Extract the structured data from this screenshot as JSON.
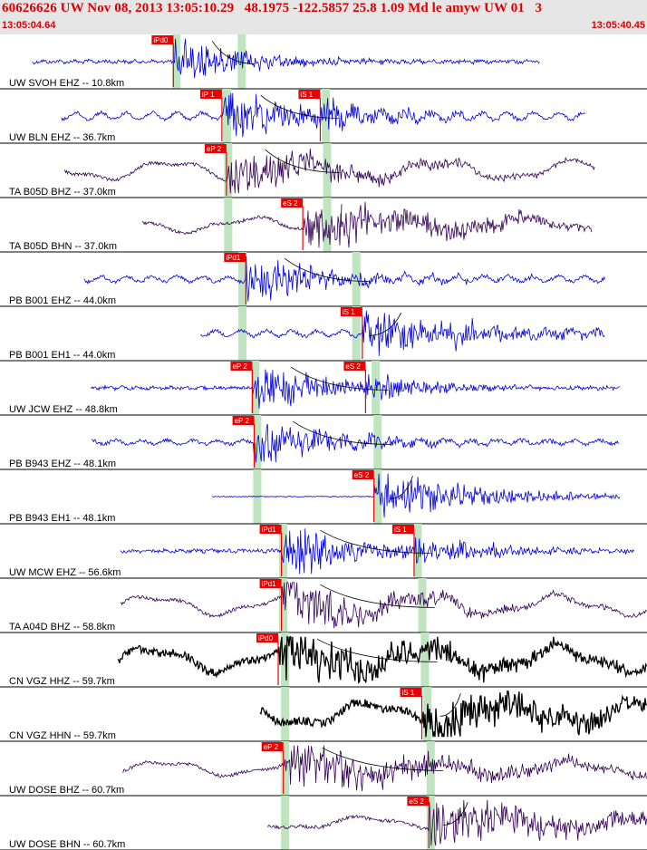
{
  "header": {
    "title": "60626626 UW Nov 08, 2013 13:05:10.29   48.1975 -122.5857 25.8 1.09 Md le amyw UW 01   3",
    "start_time": "13:05:04.64",
    "end_time": "13:05:40.45"
  },
  "colors": {
    "header_bg": "#e6e6e6",
    "header_text": "#dd0000",
    "pick": "#ee0000",
    "window": "#bfe4bf",
    "blue_trace": "#0000dd",
    "purple_trace": "#330055",
    "black_trace": "#000000"
  },
  "time_window": {
    "start": "13:05:04.64",
    "end": "13:05:40.45"
  },
  "traces": [
    {
      "label": "UW SVOH EHZ -- 10.8km",
      "color": "blue",
      "amp": 0.15,
      "style": "noise",
      "picks": [
        {
          "text": "iPd0",
          "t": 0.268
        }
      ],
      "windows": [
        0.272,
        0.373
      ],
      "onset": 0.27,
      "end": 0.835,
      "decay": 0.12
    },
    {
      "label": "UW BLN EHZ -- 36.7km",
      "color": "blue",
      "amp": 0.25,
      "style": "wave",
      "picks": [
        {
          "text": "iP 1",
          "t": 0.343
        },
        {
          "text": "iS 1",
          "t": 0.495
        }
      ],
      "windows": [
        0.35,
        0.503
      ],
      "onset": 0.345,
      "end": 0.905,
      "decay": 0.14
    },
    {
      "label": "TA B05D BHZ -- 37.0km",
      "color": "purple",
      "amp": 0.4,
      "style": "swell",
      "picks": [
        {
          "text": "eP 2",
          "t": 0.35
        }
      ],
      "windows": [
        0.352,
        0.505
      ],
      "onset": 0.35,
      "end": 0.92,
      "decay": 0.2
    },
    {
      "label": "TA B05D BHN -- 37.0km",
      "color": "purple",
      "amp": 0.3,
      "style": "swell",
      "picks": [
        {
          "text": "eS 2",
          "t": 0.468
        }
      ],
      "windows": [
        0.352,
        0.505
      ],
      "onset": 0.47,
      "end": 0.915,
      "decay": 0.25
    },
    {
      "label": "PB B001 EHZ -- 44.0km",
      "color": "blue",
      "amp": 0.2,
      "style": "wave",
      "picks": [
        {
          "text": "iPd1",
          "t": 0.38
        }
      ],
      "windows": [
        0.374,
        0.55
      ],
      "onset": 0.38,
      "end": 0.935,
      "decay": 0.15
    },
    {
      "label": "PB B001 EH1 -- 44.0km",
      "color": "blue",
      "amp": 0.2,
      "style": "wave",
      "picks": [
        {
          "text": "iS 1",
          "t": 0.56
        }
      ],
      "windows": [
        0.374,
        0.55
      ],
      "onset": 0.56,
      "end": 0.935,
      "decay": 0.2
    },
    {
      "label": "UW JCW EHZ -- 48.8km",
      "color": "blue",
      "amp": 0.15,
      "style": "noise",
      "picks": [
        {
          "text": "eP 2",
          "t": 0.39
        },
        {
          "text": "eS 2",
          "t": 0.565
        }
      ],
      "windows": [
        0.394,
        0.58
      ],
      "onset": 0.39,
      "end": 0.958,
      "decay": 0.12
    },
    {
      "label": "PB B943 EHZ -- 48.1km",
      "color": "blue",
      "amp": 0.15,
      "style": "wave",
      "picks": [
        {
          "text": "eP 2",
          "t": 0.393
        }
      ],
      "windows": [
        0.397,
        0.583
      ],
      "onset": 0.392,
      "end": 0.958,
      "decay": 0.15
    },
    {
      "label": "PB B943 EH1 -- 48.1km",
      "color": "blue",
      "amp": 0.05,
      "style": "flat",
      "picks": [
        {
          "text": "eS 2",
          "t": 0.578
        }
      ],
      "windows": [
        0.397,
        0.583
      ],
      "onset": 0.578,
      "end": 0.958,
      "decay": 0.18
    },
    {
      "label": "UW MCW EHZ -- 56.6km",
      "color": "blue",
      "amp": 0.1,
      "style": "noise",
      "picks": [
        {
          "text": "iPd1",
          "t": 0.435
        },
        {
          "text": "iS 1",
          "t": 0.64
        }
      ],
      "windows": [
        0.437,
        0.645
      ],
      "onset": 0.436,
      "end": 0.98,
      "decay": 0.15
    },
    {
      "label": "TA A04D BHZ -- 58.8km",
      "color": "purple",
      "amp": 0.4,
      "style": "swell",
      "picks": [
        {
          "text": "iPd1",
          "t": 0.435
        }
      ],
      "windows": [
        0.437,
        0.652
      ],
      "onset": 0.436,
      "end": 1.0,
      "decay": 0.2
    },
    {
      "label": "CN VGZ HHZ -- 59.7km",
      "color": "black",
      "amp": 0.5,
      "style": "swell-thick",
      "picks": [
        {
          "text": "iPd0",
          "t": 0.43
        }
      ],
      "windows": [
        0.44,
        0.656
      ],
      "onset": 0.432,
      "end": 1.0,
      "decay": 0.3
    },
    {
      "label": "CN VGZ HHN -- 59.7km",
      "color": "black",
      "amp": 0.5,
      "style": "swell-thick",
      "picks": [
        {
          "text": "iS 1",
          "t": 0.652
        }
      ],
      "windows": [
        0.44,
        0.66
      ],
      "onset": 0.652,
      "end": 1.0,
      "decay": 0.3
    },
    {
      "label": "UW DOSE BHZ -- 60.7km",
      "color": "purple",
      "amp": 0.3,
      "style": "swell",
      "picks": [
        {
          "text": "eP 2",
          "t": 0.438
        }
      ],
      "windows": [
        0.44,
        0.665
      ],
      "onset": 0.44,
      "end": 1.0,
      "decay": 0.3
    },
    {
      "label": "UW DOSE BHN -- 60.7km",
      "color": "purple",
      "amp": 0.25,
      "style": "swell",
      "picks": [
        {
          "text": "eS 2",
          "t": 0.663
        }
      ],
      "windows": [
        0.44,
        0.665
      ],
      "onset": 0.663,
      "end": 1.0,
      "decay": 0.3
    }
  ]
}
